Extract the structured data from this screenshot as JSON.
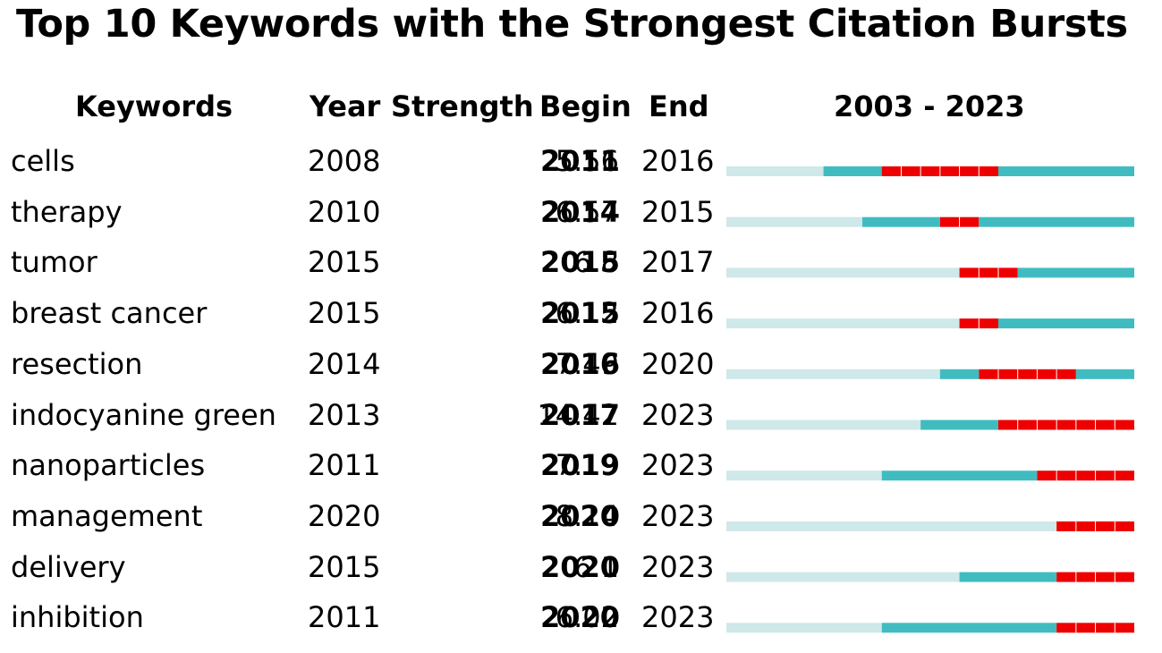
{
  "title": "Top 10 Keywords with the Strongest Citation Bursts",
  "headers": {
    "keywords": "Keywords",
    "year": "Year",
    "strength": "Strength",
    "begin": "Begin",
    "end": "End",
    "range": "2003 - 2023"
  },
  "colors": {
    "before_appearance": "#cfe8ea",
    "active": "#40bcc0",
    "burst": "#ee0000"
  },
  "chart_data": {
    "type": "table",
    "timeline_start": 2003,
    "timeline_end": 2023,
    "rows": [
      {
        "keyword": "cells",
        "year": "2008",
        "strength": "5.56",
        "begin": "2011",
        "end": "2016"
      },
      {
        "keyword": "therapy",
        "year": "2010",
        "strength": "6.57",
        "begin": "2014",
        "end": "2015"
      },
      {
        "keyword": "tumor",
        "year": "2015",
        "strength": "6.8",
        "begin": "2015",
        "end": "2017"
      },
      {
        "keyword": "breast cancer",
        "year": "2015",
        "strength": "6.12",
        "begin": "2015",
        "end": "2016"
      },
      {
        "keyword": "resection",
        "year": "2014",
        "strength": "7.49",
        "begin": "2016",
        "end": "2020"
      },
      {
        "keyword": "indocyanine green",
        "year": "2013",
        "strength": "14.42",
        "begin": "2017",
        "end": "2023"
      },
      {
        "keyword": "nanoparticles",
        "year": "2011",
        "strength": "7.19",
        "begin": "2019",
        "end": "2023"
      },
      {
        "keyword": "management",
        "year": "2020",
        "strength": "8.14",
        "begin": "2020",
        "end": "2023"
      },
      {
        "keyword": "delivery",
        "year": "2015",
        "strength": "6.1",
        "begin": "2020",
        "end": "2023"
      },
      {
        "keyword": "inhibition",
        "year": "2011",
        "strength": "6.02",
        "begin": "2020",
        "end": "2023"
      }
    ]
  }
}
